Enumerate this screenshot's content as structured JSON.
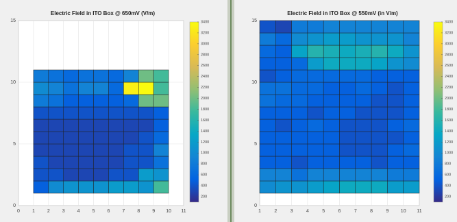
{
  "chart_data": [
    {
      "type": "heatmap",
      "title": "Electric Field in ITO Box @ 650mV (V/m)",
      "xlim": [
        0,
        11
      ],
      "xticks": [
        0,
        1,
        2,
        3,
        4,
        5,
        6,
        7,
        8,
        9,
        10,
        11
      ],
      "ylim": [
        0,
        15
      ],
      "yticks": [
        0,
        5,
        10,
        15
      ],
      "grid": true,
      "xbins": [
        1,
        2,
        3,
        4,
        5,
        6,
        7,
        8,
        9,
        10
      ],
      "ybins": [
        1,
        2,
        3,
        4,
        5,
        6,
        7,
        8,
        9,
        10,
        11
      ],
      "values": [
        [
          500,
          1000,
          1100,
          1100,
          1100,
          1200,
          1200,
          1100,
          1800
        ],
        [
          400,
          400,
          300,
          300,
          300,
          400,
          400,
          1200,
          1100
        ],
        [
          400,
          300,
          300,
          300,
          300,
          300,
          400,
          400,
          700
        ],
        [
          300,
          300,
          300,
          300,
          300,
          300,
          400,
          400,
          900
        ],
        [
          300,
          300,
          300,
          300,
          300,
          300,
          300,
          400,
          600
        ],
        [
          300,
          300,
          300,
          300,
          300,
          300,
          300,
          300,
          500
        ],
        [
          400,
          400,
          400,
          400,
          400,
          400,
          400,
          400,
          500
        ],
        [
          800,
          700,
          500,
          500,
          500,
          500,
          600,
          2000,
          2000
        ],
        [
          1000,
          900,
          700,
          900,
          900,
          600,
          3300,
          3400,
          1800
        ],
        [
          800,
          700,
          600,
          700,
          700,
          600,
          900,
          2000,
          1800
        ]
      ],
      "clim": [
        100,
        3400
      ],
      "cticks": [
        200,
        400,
        600,
        800,
        1000,
        1200,
        1400,
        1600,
        1800,
        2000,
        2200,
        2400,
        2600,
        2800,
        3000,
        3200,
        3400
      ],
      "colormap": [
        "#352a87",
        "#0363e1",
        "#1485d4",
        "#06a7c6",
        "#38b99e",
        "#92bf73",
        "#d9ba56",
        "#fcce2e",
        "#f9fb0e"
      ]
    },
    {
      "type": "heatmap",
      "title": "Electric Field in ITO Box @ 550mV (in V/m)",
      "xlim": [
        1,
        11
      ],
      "xticks": [
        1,
        2,
        3,
        4,
        5,
        6,
        7,
        8,
        9,
        10,
        11
      ],
      "ylim": [
        0,
        15
      ],
      "yticks": [
        0,
        5,
        10,
        15
      ],
      "grid": true,
      "xbins": [
        1,
        2,
        3,
        4,
        5,
        6,
        7,
        8,
        9,
        10,
        11
      ],
      "ybins": [
        1,
        2,
        3,
        4,
        5,
        6,
        7,
        8,
        9,
        10,
        11,
        12,
        13,
        14,
        15
      ],
      "values": [
        [
          1000,
          1100,
          1100,
          1200,
          1300,
          1400,
          1400,
          1400,
          1200,
          1200
        ],
        [
          900,
          900,
          700,
          900,
          900,
          900,
          900,
          900,
          800,
          800
        ],
        [
          500,
          500,
          400,
          500,
          500,
          500,
          500,
          400,
          500,
          500
        ],
        [
          500,
          500,
          500,
          500,
          500,
          400,
          400,
          400,
          500,
          600
        ],
        [
          500,
          500,
          500,
          500,
          500,
          400,
          400,
          400,
          400,
          500
        ],
        [
          500,
          400,
          500,
          600,
          500,
          400,
          400,
          400,
          500,
          600
        ],
        [
          500,
          500,
          500,
          400,
          500,
          500,
          400,
          400,
          400,
          500
        ],
        [
          700,
          600,
          600,
          500,
          500,
          500,
          500,
          400,
          400,
          500
        ],
        [
          700,
          700,
          600,
          600,
          500,
          500,
          600,
          500,
          400,
          500
        ],
        [
          400,
          500,
          600,
          600,
          600,
          600,
          600,
          500,
          500,
          500
        ],
        [
          500,
          500,
          600,
          1200,
          1400,
          1400,
          1400,
          1300,
          1100,
          1000
        ],
        [
          600,
          500,
          1300,
          1600,
          1500,
          1400,
          1500,
          1600,
          1400,
          1100
        ],
        [
          800,
          600,
          1000,
          1100,
          1200,
          1200,
          1100,
          1100,
          1100,
          900
        ],
        [
          400,
          300,
          800,
          800,
          900,
          900,
          900,
          900,
          900,
          900
        ]
      ],
      "clim": [
        100,
        3400
      ],
      "cticks": [
        200,
        400,
        600,
        800,
        1000,
        1200,
        1400,
        1600,
        1800,
        2000,
        2200,
        2400,
        2600,
        2800,
        3000,
        3200,
        3400
      ],
      "colormap": [
        "#352a87",
        "#0363e1",
        "#1485d4",
        "#06a7c6",
        "#38b99e",
        "#92bf73",
        "#d9ba56",
        "#fcce2e",
        "#f9fb0e"
      ]
    }
  ]
}
